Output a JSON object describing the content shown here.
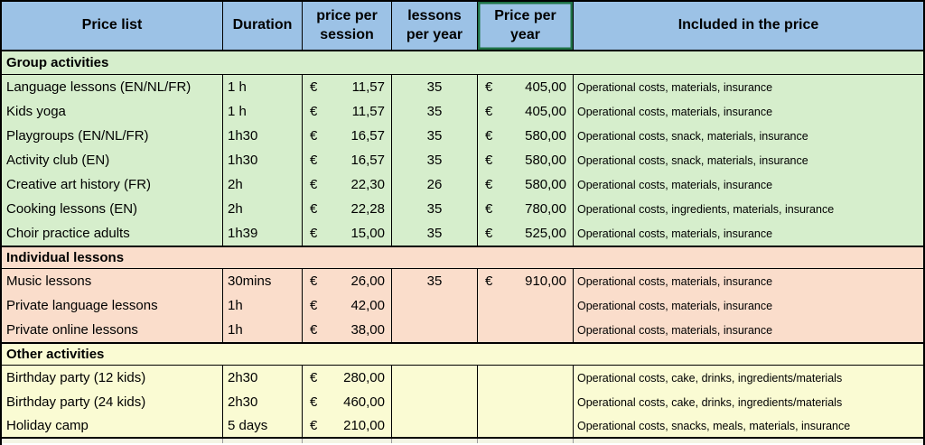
{
  "table": {
    "currency_symbol": "€",
    "columns": [
      {
        "label": "Price list"
      },
      {
        "label": "Duration"
      },
      {
        "label": "price per session"
      },
      {
        "label": "lessons per year"
      },
      {
        "label": "Price per year",
        "selected": true
      },
      {
        "label": "Included in the price"
      }
    ],
    "sections": [
      {
        "title": "Group activities",
        "bg": "#D6EECC",
        "rows": [
          {
            "name": "Language lessons (EN/NL/FR)",
            "duration": "1 h",
            "price_per_session": "11,57",
            "lessons_per_year": "35",
            "price_per_year": "405,00",
            "included": "Operational costs, materials, insurance"
          },
          {
            "name": "Kids yoga",
            "duration": "1 h",
            "price_per_session": "11,57",
            "lessons_per_year": "35",
            "price_per_year": "405,00",
            "included": "Operational costs, materials, insurance"
          },
          {
            "name": "Playgroups (EN/NL/FR)",
            "duration": "1h30",
            "price_per_session": "16,57",
            "lessons_per_year": "35",
            "price_per_year": "580,00",
            "included": "Operational costs, snack, materials, insurance"
          },
          {
            "name": "Activity club (EN)",
            "duration": "1h30",
            "price_per_session": "16,57",
            "lessons_per_year": "35",
            "price_per_year": "580,00",
            "included": "Operational costs, snack, materials, insurance"
          },
          {
            "name": "Creative art history (FR)",
            "duration": "2h",
            "price_per_session": "22,30",
            "lessons_per_year": "26",
            "price_per_year": "580,00",
            "included": "Operational costs, materials, insurance"
          },
          {
            "name": "Cooking lessons (EN)",
            "duration": "2h",
            "price_per_session": "22,28",
            "lessons_per_year": "35",
            "price_per_year": "780,00",
            "included": "Operational costs, ingredients, materials, insurance"
          },
          {
            "name": "Choir practice adults",
            "duration": "1h39",
            "price_per_session": "15,00",
            "lessons_per_year": "35",
            "price_per_year": "525,00",
            "included": "Operational costs, materials, insurance"
          }
        ]
      },
      {
        "title": "Individual lessons",
        "bg": "#FADDCB",
        "rows": [
          {
            "name": "Music lessons",
            "duration": "30mins",
            "price_per_session": "26,00",
            "lessons_per_year": "35",
            "price_per_year": "910,00",
            "included": "Operational costs, materials, insurance"
          },
          {
            "name": "Private language lessons",
            "duration": "1h",
            "price_per_session": "42,00",
            "lessons_per_year": "",
            "price_per_year": "",
            "included": "Operational costs, materials, insurance"
          },
          {
            "name": "Private online lessons",
            "duration": "1h",
            "price_per_session": "38,00",
            "lessons_per_year": "",
            "price_per_year": "",
            "included": "Operational costs, materials, insurance"
          }
        ]
      },
      {
        "title": "Other activities",
        "bg": "#FAFBD3",
        "rows": [
          {
            "name": "Birthday party (12 kids)",
            "duration": "2h30",
            "price_per_session": "280,00",
            "lessons_per_year": "",
            "price_per_year": "",
            "included": "Operational costs, cake, drinks, ingredients/materials"
          },
          {
            "name": "Birthday party (24 kids)",
            "duration": "2h30",
            "price_per_session": "460,00",
            "lessons_per_year": "",
            "price_per_year": "",
            "included": "Operational costs, cake, drinks, ingredients/materials"
          },
          {
            "name": "Holiday camp",
            "duration": "5 days",
            "price_per_session": "210,00",
            "lessons_per_year": "",
            "price_per_year": "",
            "included": "Operational costs, snacks, meals, materials, insurance"
          }
        ]
      }
    ]
  },
  "colors": {
    "header_bg": "#9CC2E6",
    "selected_border": "#1E7145",
    "grid": "#000000",
    "sliver_bg": "#F4F5E4"
  }
}
